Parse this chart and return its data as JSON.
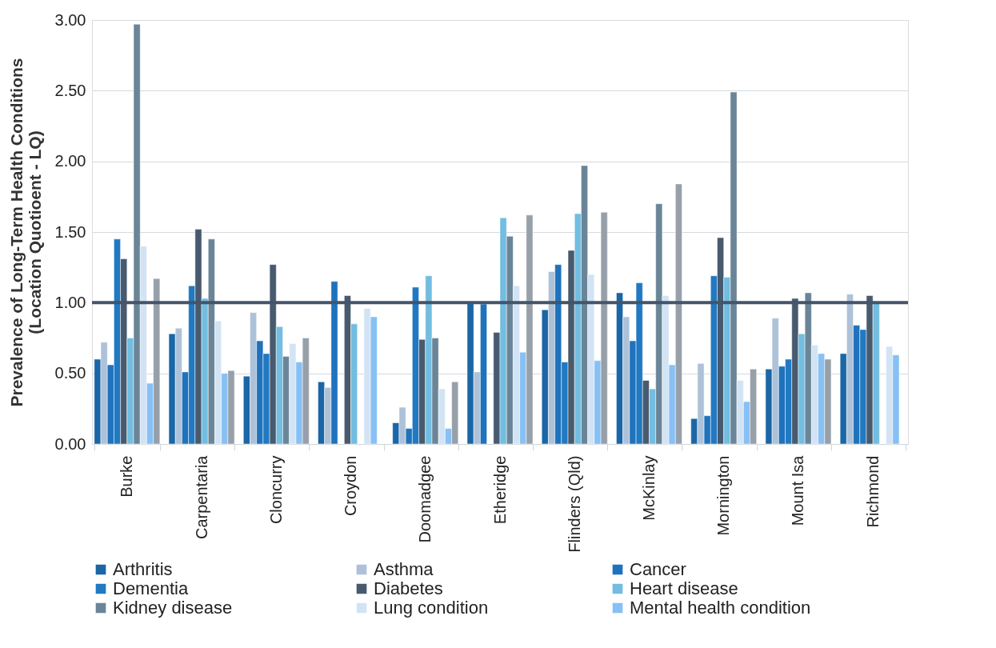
{
  "chart_data": {
    "type": "bar",
    "ylabel": "Prevalence of Long-Term Health Conditions\n(Location Quotioent - LQ)",
    "categories": [
      "Burke",
      "Carpentaria",
      "Cloncurry",
      "Croydon",
      "Doomadgee",
      "Etheridge",
      "Flinders (Qld)",
      "McKinlay",
      "Mornington",
      "Mount Isa",
      "Richmond"
    ],
    "series": [
      {
        "name": "Arthritis",
        "color": "#1a66a6",
        "values": [
          0.6,
          0.78,
          0.48,
          0.44,
          0.15,
          1.0,
          0.95,
          1.07,
          0.18,
          0.53,
          0.64
        ]
      },
      {
        "name": "Asthma",
        "color": "#adc2d8",
        "values": [
          0.72,
          0.82,
          0.93,
          0.4,
          0.26,
          0.51,
          1.22,
          0.9,
          0.57,
          0.89,
          1.06
        ]
      },
      {
        "name": "Cancer",
        "color": "#1f72bc",
        "values": [
          0.56,
          0.51,
          0.73,
          1.15,
          0.11,
          0.99,
          1.27,
          0.73,
          0.2,
          0.55,
          0.84
        ]
      },
      {
        "name": "Dementia",
        "color": "#2079c2",
        "values": [
          1.45,
          1.12,
          0.64,
          null,
          1.11,
          null,
          0.58,
          1.14,
          1.19,
          0.6,
          0.81
        ]
      },
      {
        "name": "Diabetes",
        "color": "#485a6e",
        "values": [
          1.31,
          1.52,
          1.27,
          1.05,
          0.74,
          0.79,
          1.37,
          0.45,
          1.46,
          1.03,
          1.05
        ]
      },
      {
        "name": "Heart disease",
        "color": "#72bde0",
        "values": [
          0.75,
          1.03,
          0.83,
          0.85,
          1.19,
          1.6,
          1.63,
          0.39,
          1.18,
          0.78,
          1.0
        ]
      },
      {
        "name": "Kidney disease",
        "color": "#6a8597",
        "values": [
          2.97,
          1.45,
          0.62,
          null,
          0.75,
          1.47,
          1.97,
          1.7,
          2.49,
          1.07,
          null
        ]
      },
      {
        "name": "Lung condition",
        "color": "#d2e3f4",
        "values": [
          1.4,
          0.87,
          0.71,
          0.96,
          0.39,
          1.12,
          1.2,
          1.05,
          0.45,
          0.7,
          0.69
        ]
      },
      {
        "name": "Mental health condition",
        "color": "#87c0f5",
        "values": [
          0.43,
          0.5,
          0.58,
          0.9,
          0.11,
          0.65,
          0.59,
          0.56,
          0.3,
          0.64,
          0.63
        ]
      },
      {
        "color": "#97a0a9",
        "values": [
          1.17,
          0.52,
          0.75,
          null,
          0.44,
          1.62,
          1.64,
          1.84,
          0.53,
          0.6,
          null
        ]
      }
    ],
    "ylim": [
      0,
      3
    ],
    "yticks": [
      {
        "value": 0,
        "label": "0.00"
      },
      {
        "value": 0.5,
        "label": "0.50"
      },
      {
        "value": 1,
        "label": "1.00"
      },
      {
        "value": 1.5,
        "label": "1.50"
      },
      {
        "value": 2,
        "label": "2.00"
      },
      {
        "value": 2.5,
        "label": "2.50"
      },
      {
        "value": 3,
        "label": "3.00"
      }
    ],
    "ref_lines": [
      {
        "axis": "y",
        "value": 1,
        "color": "#44546a"
      }
    ],
    "grid": "y",
    "legend": "bottom"
  }
}
